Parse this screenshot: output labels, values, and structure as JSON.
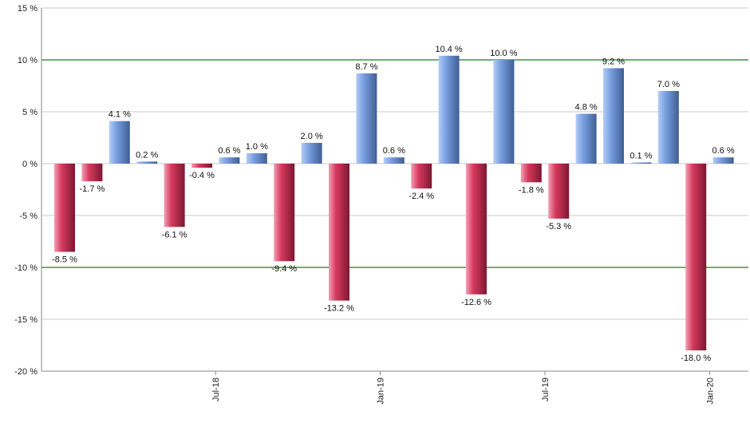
{
  "chart_data": {
    "type": "bar",
    "title": "",
    "xlabel": "",
    "ylabel": "",
    "ylim": [
      -20,
      15
    ],
    "y_ticks": [
      15,
      10,
      5,
      0,
      -5,
      -10,
      -15,
      -20
    ],
    "y_tick_labels": [
      "15 %",
      "10 %",
      "5 %",
      "0 %",
      "-5 %",
      "-10 %",
      "-15 %",
      "-20 %"
    ],
    "reference_lines": [
      10,
      -10
    ],
    "x_labels": [
      {
        "after_bar": 5,
        "label": "Jul-18"
      },
      {
        "after_bar": 11,
        "label": "Jan-19"
      },
      {
        "after_bar": 17,
        "label": "Jul-19"
      },
      {
        "after_bar": 23,
        "label": "Jan-20"
      }
    ],
    "values": [
      -8.5,
      -1.7,
      4.1,
      0.2,
      -6.1,
      -0.4,
      0.6,
      1.0,
      -9.4,
      2.0,
      -13.2,
      8.7,
      0.6,
      -2.4,
      10.4,
      -12.6,
      10.0,
      -1.8,
      -5.3,
      4.8,
      9.2,
      0.1,
      7.0,
      -18.0,
      0.6
    ],
    "data_labels": [
      "-8.5 %",
      "-1.7 %",
      "4.1 %",
      "0.2 %",
      "-6.1 %",
      "-0.4 %",
      "0.6 %",
      "1.0 %",
      "-9.4 %",
      "2.0 %",
      "-13.2 %",
      "8.7 %",
      "0.6 %",
      "-2.4 %",
      "10.4 %",
      "-12.6 %",
      "10.0 %",
      "-1.8 %",
      "-5.3 %",
      "4.8 %",
      "9.2 %",
      "0.1 %",
      "7.0 %",
      "-18.0 %",
      "0.6 %"
    ],
    "colors": {
      "positive_light": "#b3cdf5",
      "positive_mid": "#7aa0e2",
      "positive_dark": "#3f5f93",
      "negative_light": "#f3a0b4",
      "negative_mid": "#d63a5e",
      "negative_dark": "#7e1730",
      "grid": "#c8c8c8",
      "reference_line": "#1e7a1e",
      "axis": "#888888"
    }
  }
}
